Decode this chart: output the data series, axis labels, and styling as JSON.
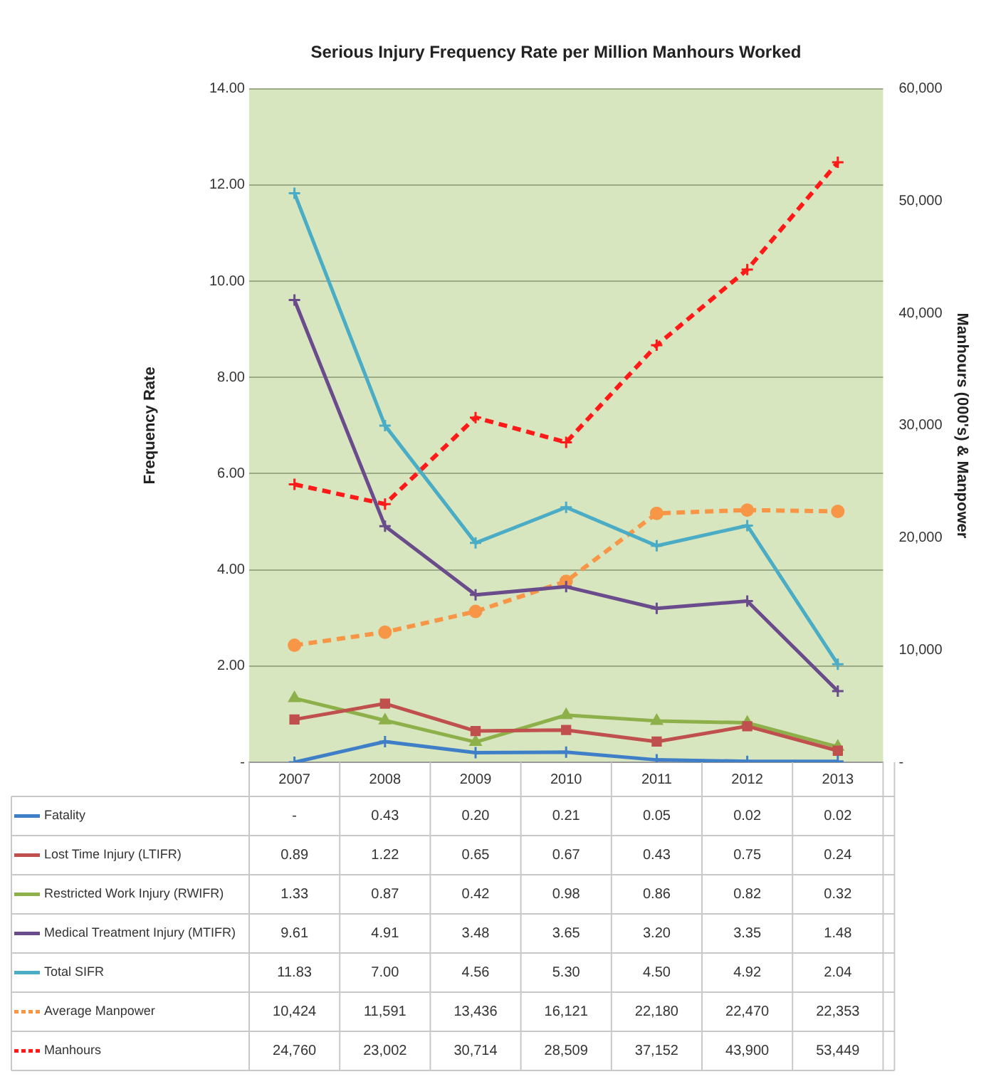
{
  "chart_data": {
    "type": "line",
    "title": "Serious Injury Frequency Rate per Million Manhours Worked",
    "ylabel": "Frequency Rate",
    "y2label": "Manhours (000's) & Manpower",
    "categories": [
      "2007",
      "2008",
      "2009",
      "2010",
      "2011",
      "2012",
      "2013"
    ],
    "ylim": [
      0,
      14
    ],
    "yticks": [
      {
        "value": 0,
        "label": "-"
      },
      {
        "value": 2,
        "label": "2.00"
      },
      {
        "value": 4,
        "label": "4.00"
      },
      {
        "value": 6,
        "label": "6.00"
      },
      {
        "value": 8,
        "label": "8.00"
      },
      {
        "value": 10,
        "label": "10.00"
      },
      {
        "value": 12,
        "label": "12.00"
      },
      {
        "value": 14,
        "label": "14.00"
      }
    ],
    "y2lim": [
      0,
      60000
    ],
    "y2ticks": [
      {
        "value": 0,
        "label": "-"
      },
      {
        "value": 10000,
        "label": "10,000"
      },
      {
        "value": 20000,
        "label": "20,000"
      },
      {
        "value": 30000,
        "label": "30,000"
      },
      {
        "value": 40000,
        "label": "40,000"
      },
      {
        "value": 50000,
        "label": "50,000"
      },
      {
        "value": 60000,
        "label": "60,000"
      }
    ],
    "grid": "y",
    "legend": "bottom",
    "series": [
      {
        "name": "Fatality",
        "color": "#3f7fc8",
        "marker": "cross",
        "line_style": "solid",
        "values": [
          0,
          0.43,
          0.2,
          0.21,
          0.05,
          0.02,
          0.02
        ],
        "value_labels": [
          "-",
          "0.43",
          "0.20",
          "0.21",
          "0.05",
          "0.02",
          "0.02"
        ]
      },
      {
        "name": "Lost Time Injury (LTIFR)",
        "color": "#c0504d",
        "marker": "square",
        "line_style": "solid",
        "values": [
          0.89,
          1.22,
          0.65,
          0.67,
          0.43,
          0.75,
          0.24
        ],
        "value_labels": [
          "0.89",
          "1.22",
          "0.65",
          "0.67",
          "0.43",
          "0.75",
          "0.24"
        ]
      },
      {
        "name": "Restricted Work Injury (RWIFR)",
        "color": "#8db04a",
        "marker": "triangle",
        "line_style": "solid",
        "values": [
          1.33,
          0.87,
          0.42,
          0.98,
          0.86,
          0.82,
          0.32
        ],
        "value_labels": [
          "1.33",
          "0.87",
          "0.42",
          "0.98",
          "0.86",
          "0.82",
          "0.32"
        ]
      },
      {
        "name": "Medical Treatment Injury (MTIFR)",
        "color": "#6a4c8c",
        "marker": "cross",
        "line_style": "solid",
        "values": [
          9.61,
          4.91,
          3.48,
          3.65,
          3.2,
          3.35,
          1.48
        ],
        "value_labels": [
          "9.61",
          "4.91",
          "3.48",
          "3.65",
          "3.20",
          "3.35",
          "1.48"
        ]
      },
      {
        "name": "Total SIFR",
        "color": "#4bacc6",
        "marker": "cross",
        "line_style": "solid",
        "values": [
          11.83,
          7.0,
          4.56,
          5.3,
          4.5,
          4.92,
          2.04
        ],
        "value_labels": [
          "11.83",
          "7.00",
          "4.56",
          "5.30",
          "4.50",
          "4.92",
          "2.04"
        ]
      },
      {
        "name": "Average Manpower",
        "color": "#f79646",
        "marker": "circle",
        "line_style": "dashed",
        "axis": "y2",
        "values": [
          10424,
          11591,
          13436,
          16121,
          22180,
          22470,
          22353
        ],
        "value_labels": [
          "10,424",
          "11,591",
          "13,436",
          "16,121",
          "22,180",
          "22,470",
          "22,353"
        ]
      },
      {
        "name": "Manhours",
        "color": "#ff1a1a",
        "marker": "cross",
        "line_style": "dashed",
        "axis": "y2",
        "values": [
          24760,
          23002,
          30714,
          28509,
          37152,
          43900,
          53449
        ],
        "value_labels": [
          "24,760",
          "23,002",
          "30,714",
          "28,509",
          "37,152",
          "43,900",
          "53,449"
        ]
      }
    ]
  }
}
